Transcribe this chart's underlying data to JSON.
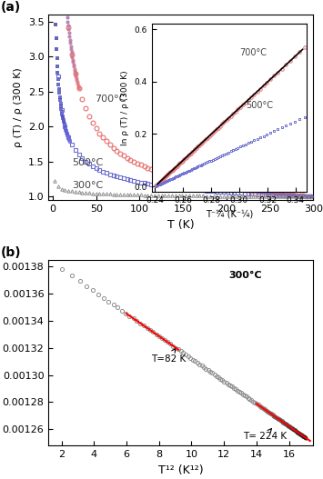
{
  "fig_bg": "#f0f0f0",
  "panel_a": {
    "T_min": 2,
    "T_max": 300,
    "ylim": [
      0.95,
      3.6
    ],
    "xlabel": "T (K)",
    "ylabel": "ρ (T) / ρ (300 K)",
    "label_700": "700°C",
    "label_500": "500°C",
    "label_300": "300°C",
    "color_700": "#e87070",
    "color_500": "#7070d0",
    "color_300": "#909090",
    "color_fit": "#000000"
  },
  "inset": {
    "xlim": [
      0.238,
      0.348
    ],
    "ylim": [
      -0.02,
      0.62
    ],
    "xlabel": "T⁻¼ (K⁻¼)",
    "ylabel": "ln ρ (T) / ρ (300 K)",
    "label_700": "700°C",
    "label_500": "500°C"
  },
  "panel_b": {
    "xlim": [
      1.2,
      17.5
    ],
    "ylim": [
      0.001248,
      0.001385
    ],
    "xlabel": "T¹² (K¹²)",
    "ylabel": "ρ (T)",
    "label_300": "300°C",
    "annot1": "T=82 K",
    "annot2": "T= 224 K",
    "color_data": "#909090",
    "color_fit": "#cc0000"
  }
}
